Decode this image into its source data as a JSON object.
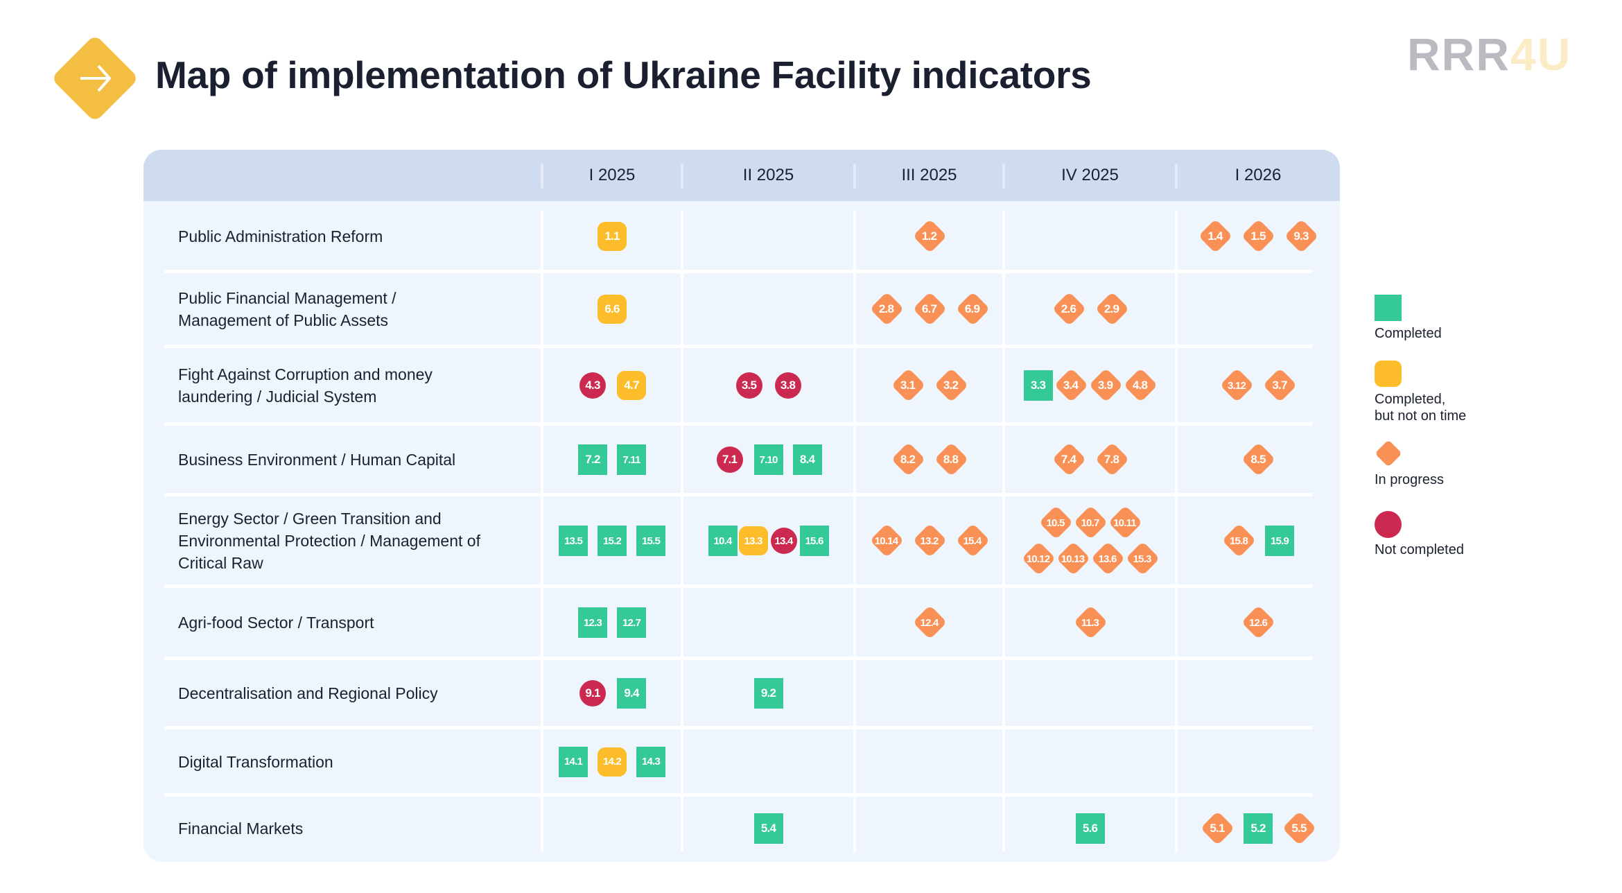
{
  "header": {
    "title": "Map of implementation of Ukraine Facility indicators",
    "icon": "arrow-right-icon",
    "logo_part1": "RRR",
    "logo_part2": "4U"
  },
  "colors": {
    "completed": "#34c997",
    "completed_late": "#fdbd2a",
    "in_progress": "#f99055",
    "not_completed": "#cc2950",
    "header_bg": "#cfdbef",
    "table_bg": "#eff5fd",
    "accent": "#f4be43"
  },
  "legend": [
    {
      "status": "completed",
      "label": "Completed"
    },
    {
      "status": "late",
      "label": "Completed,\nbut not on time"
    },
    {
      "status": "progress",
      "label": "In progress"
    },
    {
      "status": "notdone",
      "label": "Not completed"
    }
  ],
  "chart_data": {
    "type": "table",
    "title": "Map of implementation of Ukraine Facility indicators",
    "columns": [
      "I 2025",
      "II 2025",
      "III 2025",
      "IV 2025",
      "I 2026"
    ],
    "status_legend": {
      "completed": "Completed",
      "late": "Completed, but not on time",
      "progress": "In progress",
      "notdone": "Not completed"
    },
    "rows": [
      {
        "label": "Public Administration Reform",
        "cells": [
          [
            {
              "id": "1.1",
              "status": "late"
            }
          ],
          [],
          [
            {
              "id": "1.2",
              "status": "progress"
            }
          ],
          [],
          [
            {
              "id": "1.4",
              "status": "progress"
            },
            {
              "id": "1.5",
              "status": "progress"
            },
            {
              "id": "9.3",
              "status": "progress"
            }
          ]
        ]
      },
      {
        "label": "Public Financial Management / Management of Public Assets",
        "cells": [
          [
            {
              "id": "6.6",
              "status": "late"
            }
          ],
          [],
          [
            {
              "id": "2.8",
              "status": "progress"
            },
            {
              "id": "6.7",
              "status": "progress"
            },
            {
              "id": "6.9",
              "status": "progress"
            }
          ],
          [
            {
              "id": "2.6",
              "status": "progress"
            },
            {
              "id": "2.9",
              "status": "progress"
            }
          ],
          []
        ]
      },
      {
        "label": "Fight Against Corruption and money laundering / Judicial System",
        "cells": [
          [
            {
              "id": "4.3",
              "status": "notdone"
            },
            {
              "id": "4.7",
              "status": "late"
            }
          ],
          [
            {
              "id": "3.5",
              "status": "notdone"
            },
            {
              "id": "3.8",
              "status": "notdone"
            }
          ],
          [
            {
              "id": "3.1",
              "status": "progress"
            },
            {
              "id": "3.2",
              "status": "progress"
            }
          ],
          [
            {
              "id": "3.3",
              "status": "completed"
            },
            {
              "id": "3.4",
              "status": "progress"
            },
            {
              "id": "3.9",
              "status": "progress"
            },
            {
              "id": "4.8",
              "status": "progress"
            }
          ],
          [
            {
              "id": "3.12",
              "status": "progress"
            },
            {
              "id": "3.7",
              "status": "progress"
            }
          ]
        ]
      },
      {
        "label": "Business Environment / Human Capital",
        "cells": [
          [
            {
              "id": "7.2",
              "status": "completed"
            },
            {
              "id": "7.11",
              "status": "completed"
            }
          ],
          [
            {
              "id": "7.1",
              "status": "notdone"
            },
            {
              "id": "7.10",
              "status": "completed"
            },
            {
              "id": "8.4",
              "status": "completed"
            }
          ],
          [
            {
              "id": "8.2",
              "status": "progress"
            },
            {
              "id": "8.8",
              "status": "progress"
            }
          ],
          [
            {
              "id": "7.4",
              "status": "progress"
            },
            {
              "id": "7.8",
              "status": "progress"
            }
          ],
          [
            {
              "id": "8.5",
              "status": "progress"
            }
          ]
        ]
      },
      {
        "label": "Energy Sector / Green Transition and Environmental Protection / Management of Critical Raw",
        "cells": [
          [
            {
              "id": "13.5",
              "status": "completed"
            },
            {
              "id": "15.2",
              "status": "completed"
            },
            {
              "id": "15.5",
              "status": "completed"
            }
          ],
          [
            {
              "id": "10.4",
              "status": "completed"
            },
            {
              "id": "13.3",
              "status": "late"
            },
            {
              "id": "13.4",
              "status": "notdone"
            },
            {
              "id": "15.6",
              "status": "completed"
            }
          ],
          [
            {
              "id": "10.14",
              "status": "progress"
            },
            {
              "id": "13.2",
              "status": "progress"
            },
            {
              "id": "15.4",
              "status": "progress"
            }
          ],
          [
            {
              "id": "10.5",
              "status": "progress"
            },
            {
              "id": "10.7",
              "status": "progress"
            },
            {
              "id": "10.11",
              "status": "progress"
            },
            {
              "id": "10.12",
              "status": "progress"
            },
            {
              "id": "10.13",
              "status": "progress"
            },
            {
              "id": "13.6",
              "status": "progress"
            },
            {
              "id": "15.3",
              "status": "progress"
            }
          ],
          [
            {
              "id": "15.8",
              "status": "progress"
            },
            {
              "id": "15.9",
              "status": "completed"
            }
          ]
        ]
      },
      {
        "label": "Agri-food Sector / Transport",
        "cells": [
          [
            {
              "id": "12.3",
              "status": "completed"
            },
            {
              "id": "12.7",
              "status": "completed"
            }
          ],
          [],
          [
            {
              "id": "12.4",
              "status": "progress"
            }
          ],
          [
            {
              "id": "11.3",
              "status": "progress"
            }
          ],
          [
            {
              "id": "12.6",
              "status": "progress"
            }
          ]
        ]
      },
      {
        "label": "Decentralisation and Regional Policy",
        "cells": [
          [
            {
              "id": "9.1",
              "status": "notdone"
            },
            {
              "id": "9.4",
              "status": "completed"
            }
          ],
          [
            {
              "id": "9.2",
              "status": "completed"
            }
          ],
          [],
          [],
          []
        ]
      },
      {
        "label": "Digital Transformation",
        "cells": [
          [
            {
              "id": "14.1",
              "status": "completed"
            },
            {
              "id": "14.2",
              "status": "late"
            },
            {
              "id": "14.3",
              "status": "completed"
            }
          ],
          [],
          [],
          [],
          []
        ]
      },
      {
        "label": "Financial Markets",
        "cells": [
          [],
          [
            {
              "id": "5.4",
              "status": "completed"
            }
          ],
          [],
          [
            {
              "id": "5.6",
              "status": "completed"
            }
          ],
          [
            {
              "id": "5.1",
              "status": "progress"
            },
            {
              "id": "5.2",
              "status": "completed"
            },
            {
              "id": "5.5",
              "status": "progress"
            }
          ]
        ]
      }
    ]
  }
}
